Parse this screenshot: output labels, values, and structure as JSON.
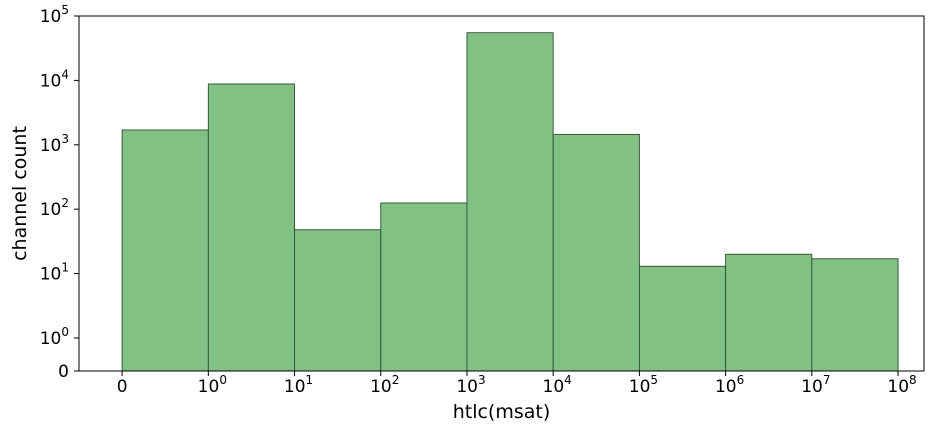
{
  "chart_data": {
    "type": "bar",
    "title": "",
    "xlabel": "htlc(msat)",
    "ylabel": "channel count",
    "x_scale": "symlog",
    "y_scale": "symlog",
    "bar_color": "#81c184",
    "edge_color": "#2f4f2f",
    "xlim": [
      -0.5,
      200000000
    ],
    "ylim": [
      0,
      100000
    ],
    "x_ticks": [
      {
        "base": "0",
        "exp": "",
        "value": 0
      },
      {
        "base": "10",
        "exp": "0",
        "value": 1
      },
      {
        "base": "10",
        "exp": "1",
        "value": 10
      },
      {
        "base": "10",
        "exp": "2",
        "value": 100
      },
      {
        "base": "10",
        "exp": "3",
        "value": 1000
      },
      {
        "base": "10",
        "exp": "4",
        "value": 10000
      },
      {
        "base": "10",
        "exp": "5",
        "value": 100000
      },
      {
        "base": "10",
        "exp": "6",
        "value": 1000000
      },
      {
        "base": "10",
        "exp": "7",
        "value": 10000000
      },
      {
        "base": "10",
        "exp": "8",
        "value": 100000000
      }
    ],
    "y_ticks": [
      {
        "base": "0",
        "exp": "",
        "value": 0
      },
      {
        "base": "10",
        "exp": "0",
        "value": 1
      },
      {
        "base": "10",
        "exp": "1",
        "value": 10
      },
      {
        "base": "10",
        "exp": "2",
        "value": 100
      },
      {
        "base": "10",
        "exp": "3",
        "value": 1000
      },
      {
        "base": "10",
        "exp": "4",
        "value": 10000
      },
      {
        "base": "10",
        "exp": "5",
        "value": 100000
      }
    ],
    "bins": [
      {
        "x0": 0,
        "x1": 1,
        "count": 1700
      },
      {
        "x0": 1,
        "x1": 10,
        "count": 8800
      },
      {
        "x0": 10,
        "x1": 100,
        "count": 48
      },
      {
        "x0": 100,
        "x1": 1000,
        "count": 125
      },
      {
        "x0": 1000,
        "x1": 10000,
        "count": 55000
      },
      {
        "x0": 10000,
        "x1": 100000,
        "count": 1450
      },
      {
        "x0": 100000,
        "x1": 1000000,
        "count": 13
      },
      {
        "x0": 1000000,
        "x1": 10000000,
        "count": 20
      },
      {
        "x0": 10000000,
        "x1": 100000000,
        "count": 17
      }
    ]
  }
}
